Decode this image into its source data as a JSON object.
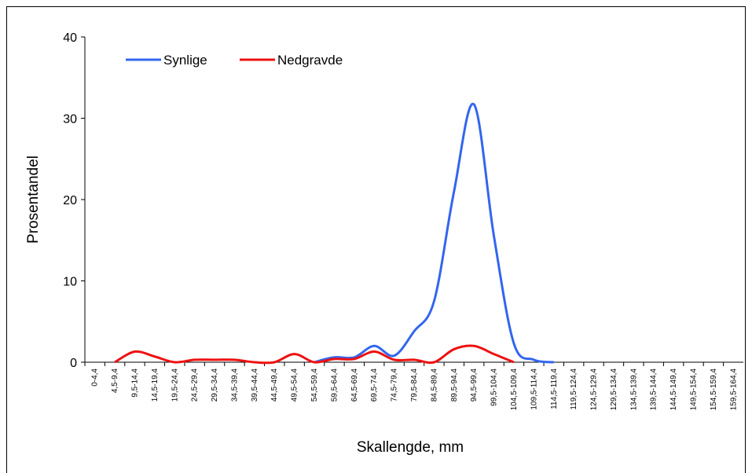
{
  "chart_data": {
    "type": "line",
    "x_label": "Skallengde, mm",
    "y_label": "Prosentandel",
    "categories": [
      "0-4,4",
      "4,5-9,4",
      "9,5-14,4",
      "14,5-19,4",
      "19,5-24,4",
      "24,5-29,4",
      "29,5-34,4",
      "34,5-39,4",
      "39,5-44,4",
      "44,5-49,4",
      "49,5-54,4",
      "54,5-59,4",
      "59,5-64,4",
      "64,5-69,4",
      "69,5-74,4",
      "74,5-79,4",
      "79,5-84,4",
      "84,5-89,4",
      "89,5-94,4",
      "94,5-99,4",
      "99,5-104,4",
      "104,5-109,4",
      "109,5-114,4",
      "114,5-119,4",
      "119,5-124,4",
      "124,5-129,4",
      "129,5-134,4",
      "134,5-139,4",
      "139,5-144,4",
      "144,5-149,4",
      "149,5-154,4",
      "154,5-159,4",
      "159,5-164,4"
    ],
    "series": [
      {
        "name": "Synlige",
        "color": "#3366ee",
        "values": [
          null,
          null,
          null,
          null,
          null,
          null,
          null,
          null,
          null,
          null,
          null,
          0,
          0.6,
          0.6,
          2.0,
          0.8,
          3.8,
          7.5,
          21,
          31.7,
          15.5,
          2.3,
          0.3,
          0,
          null,
          null,
          null,
          null,
          null,
          null,
          null,
          null,
          null
        ]
      },
      {
        "name": "Nedgravde",
        "color": "#ee1111",
        "values": [
          null,
          0,
          1.3,
          0.7,
          0,
          0.3,
          0.3,
          0.3,
          0,
          0,
          1.0,
          0,
          0.4,
          0.4,
          1.3,
          0.3,
          0.3,
          0,
          1.6,
          2.0,
          1.0,
          0,
          null,
          null,
          null,
          null,
          null,
          null,
          null,
          null,
          null,
          null,
          null
        ]
      }
    ],
    "ylim": [
      0,
      40
    ],
    "yticks": [
      0,
      10,
      20,
      30,
      40
    ],
    "legend": "top-left"
  }
}
